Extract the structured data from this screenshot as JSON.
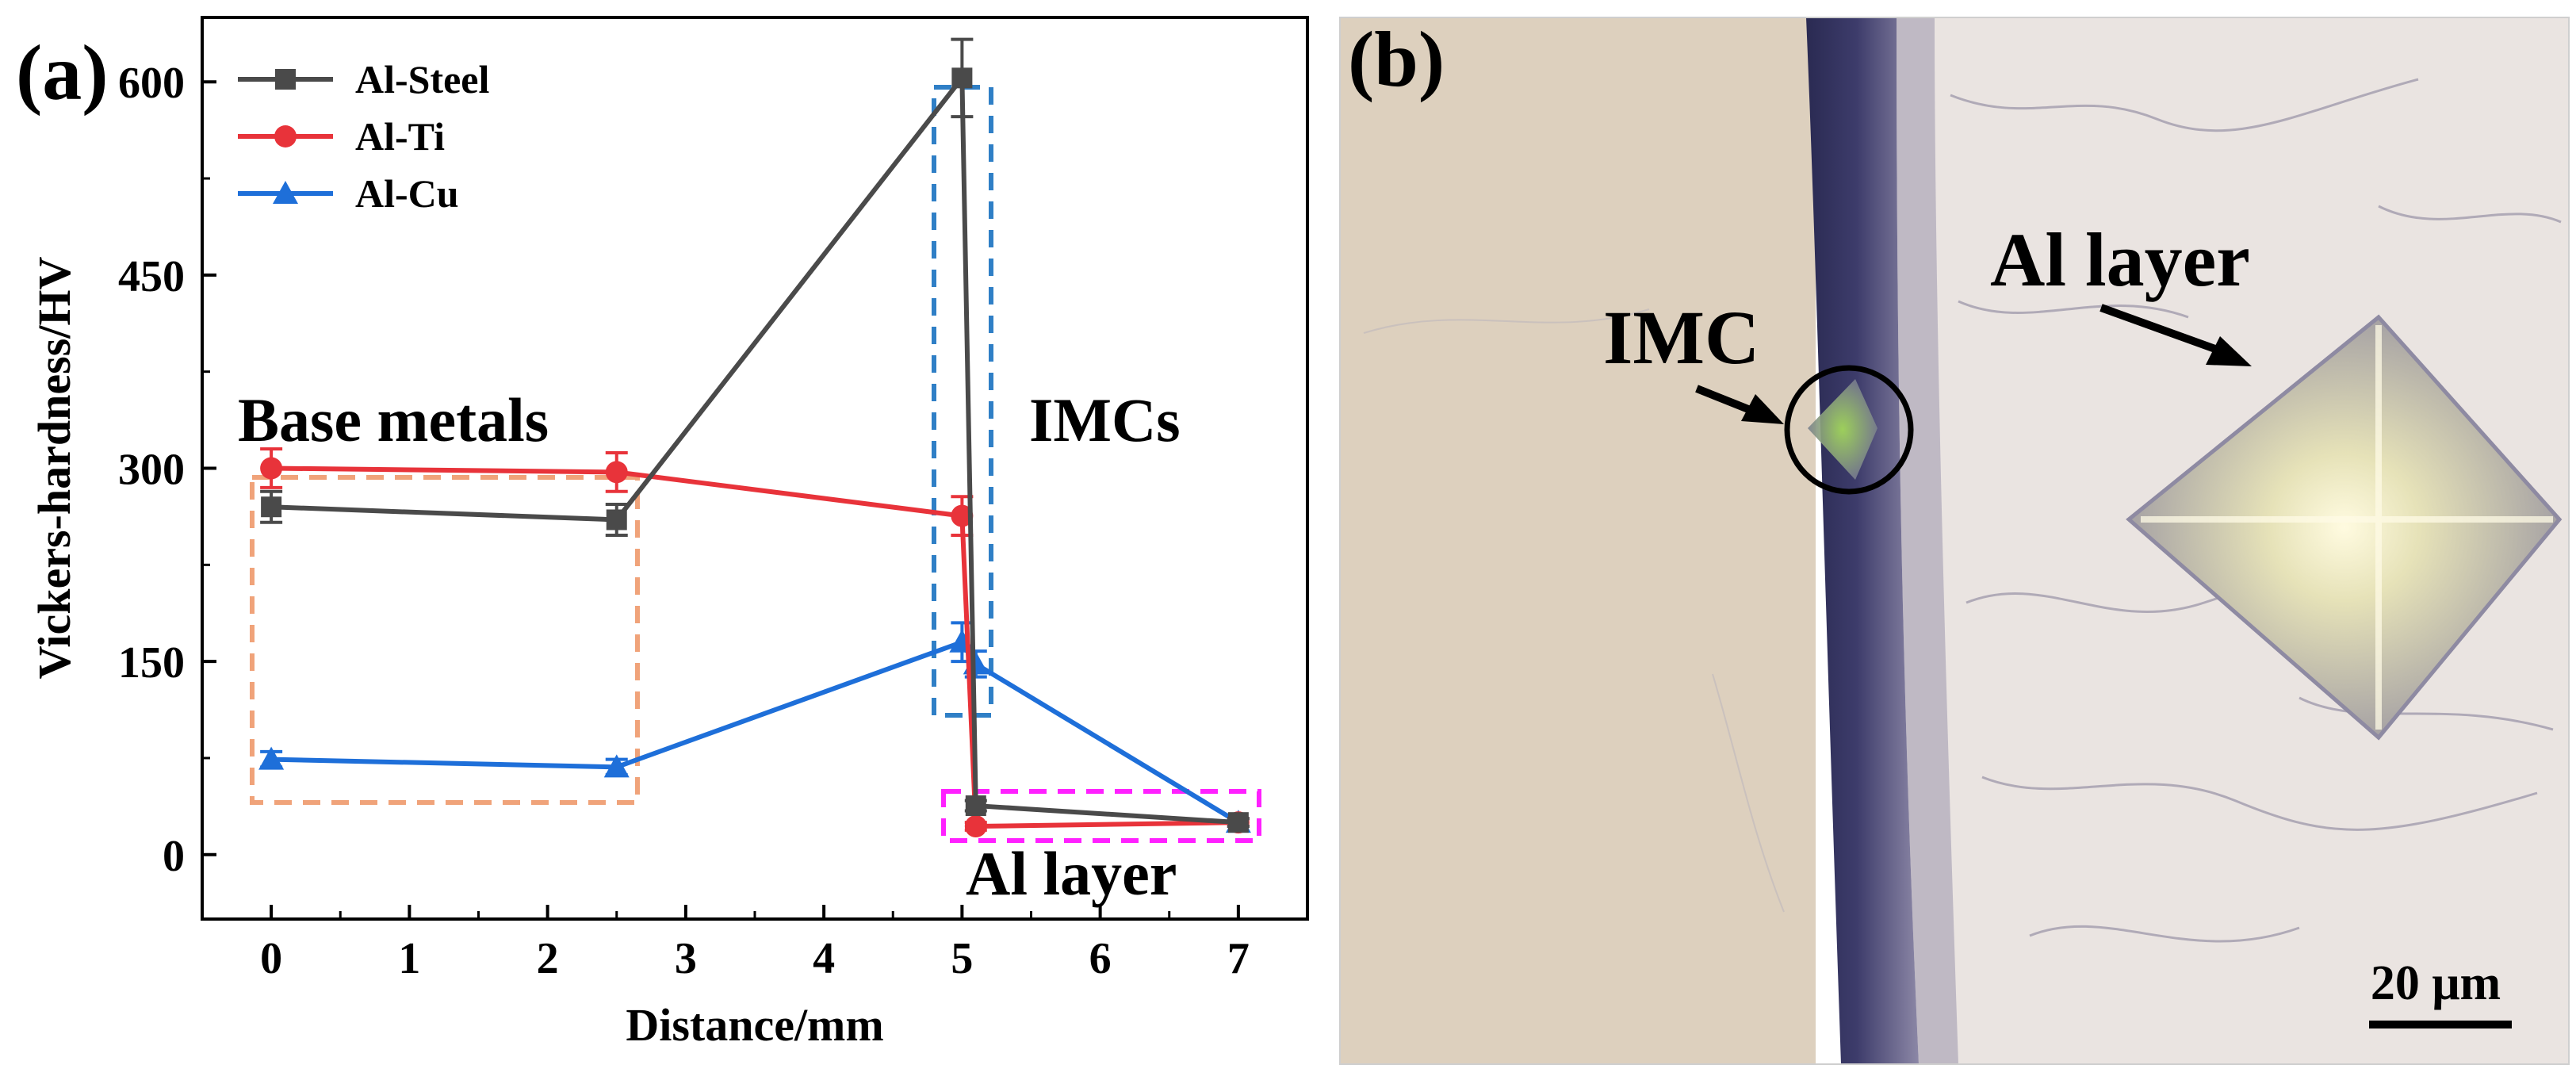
{
  "panel_a": {
    "label": "(a)",
    "annotations": {
      "base_metals": "Base metals",
      "imcs": "IMCs",
      "al_layer": "Al layer"
    }
  },
  "panel_b": {
    "label": "(b)",
    "labels": {
      "imc": "IMC",
      "al_layer": "Al layer",
      "scale_bar": "20 μm"
    }
  },
  "colors": {
    "steel": "#4a4a4a",
    "ti": "#e8333a",
    "cu": "#1e6fd9",
    "box_base": "#f0a37a",
    "box_imc": "#2f7fc6",
    "box_al": "#ff20ff"
  },
  "chart_data": {
    "type": "line",
    "title": "",
    "xlabel": "Distance/mm",
    "ylabel": "Vickers-hardness/HV",
    "xlim": [
      -0.5,
      7.5
    ],
    "ylim": [
      -50,
      650
    ],
    "xticks": [
      0,
      1,
      2,
      3,
      4,
      5,
      6,
      7
    ],
    "yticks": [
      0,
      150,
      300,
      450,
      600
    ],
    "legend_position": "top-left",
    "series": [
      {
        "name": "Al-Steel",
        "marker": "square",
        "x": [
          0,
          2.5,
          5,
          5.1,
          7
        ],
        "y": [
          270,
          260,
          603,
          38,
          25
        ],
        "err": [
          12,
          12,
          30,
          4,
          3
        ]
      },
      {
        "name": "Al-Ti",
        "marker": "circle",
        "x": [
          0,
          2.5,
          5,
          5.1,
          7
        ],
        "y": [
          300,
          297,
          263,
          22,
          25
        ],
        "err": [
          15,
          15,
          15,
          3,
          3
        ]
      },
      {
        "name": "Al-Cu",
        "marker": "triangle",
        "x": [
          0,
          2.5,
          5,
          5.1,
          7
        ],
        "y": [
          74,
          68,
          165,
          148,
          25
        ],
        "err": [
          6,
          6,
          15,
          10,
          3
        ]
      }
    ]
  }
}
